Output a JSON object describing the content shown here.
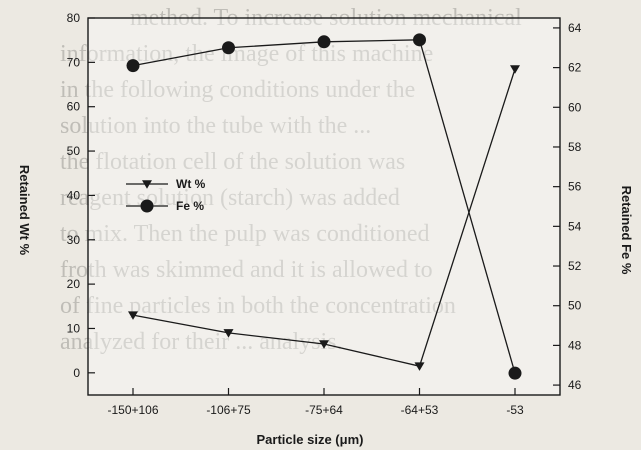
{
  "background_text": [
    "method. To increase solution mechanical",
    "",
    "information, the image of this machine",
    "in the following conditions under the",
    "solution into the tube with the ...",
    "the flotation cell of the solution was",
    "reagent solution (starch) was added",
    "to mix. Then the pulp was conditioned",
    "froth was skimmed and it is allowed to",
    "of fine particles in both the concentration",
    "analyzed for their ... analysis."
  ],
  "chart_data": {
    "type": "line",
    "categories": [
      "-150+106",
      "-106+75",
      "-75+64",
      "-64+53",
      "-53"
    ],
    "xlabel": "Particle size (μm)",
    "ylabel": "Retained Wt %",
    "y2label": "Retained Fe %",
    "ylim": [
      -5,
      80
    ],
    "y2lim": [
      45.5,
      64.5
    ],
    "yticks": [
      0,
      10,
      20,
      30,
      40,
      50,
      60,
      70,
      80
    ],
    "y2ticks": [
      46,
      48,
      50,
      52,
      54,
      56,
      58,
      60,
      62,
      64
    ],
    "legend_position": "left-middle",
    "grid": false,
    "series": [
      {
        "name": "Wt %",
        "axis": "left",
        "marker": "triangle-down",
        "values": [
          13,
          9,
          6.5,
          1.5,
          68.5
        ]
      },
      {
        "name": "Fe %",
        "axis": "right",
        "marker": "circle",
        "values": [
          62.1,
          63.0,
          63.3,
          63.4,
          46.6
        ]
      }
    ],
    "colors": {
      "line": "#1a1a1a",
      "marker": "#1a1a1a",
      "frame": "#1a1a1a"
    }
  }
}
